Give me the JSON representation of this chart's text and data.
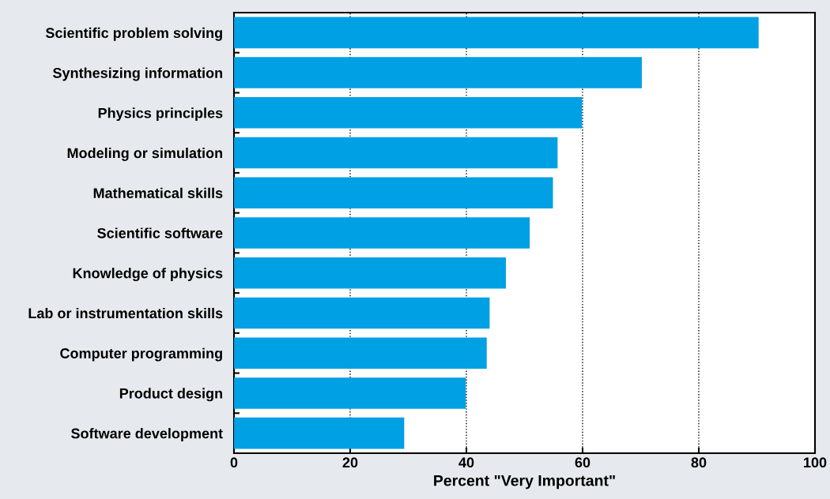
{
  "chart_data": {
    "type": "bar",
    "orientation": "horizontal",
    "categories": [
      "Scientific problem solving",
      "Synthesizing information",
      "Physics principles",
      "Modeling or simulation",
      "Mathematical skills",
      "Scientific software",
      "Knowledge of physics",
      "Lab or instrumentation skills",
      "Computer programming",
      "Product design",
      "Software development"
    ],
    "values": [
      90.3,
      70.2,
      59.9,
      55.7,
      54.9,
      50.9,
      46.8,
      44.0,
      43.5,
      39.9,
      29.3
    ],
    "color": "#00a0e4",
    "xlabel": "Percent \"Very Important\"",
    "xlim": [
      0,
      100
    ],
    "xticks": [
      0,
      20,
      40,
      60,
      80,
      100
    ],
    "grid": "x",
    "legend": false
  }
}
